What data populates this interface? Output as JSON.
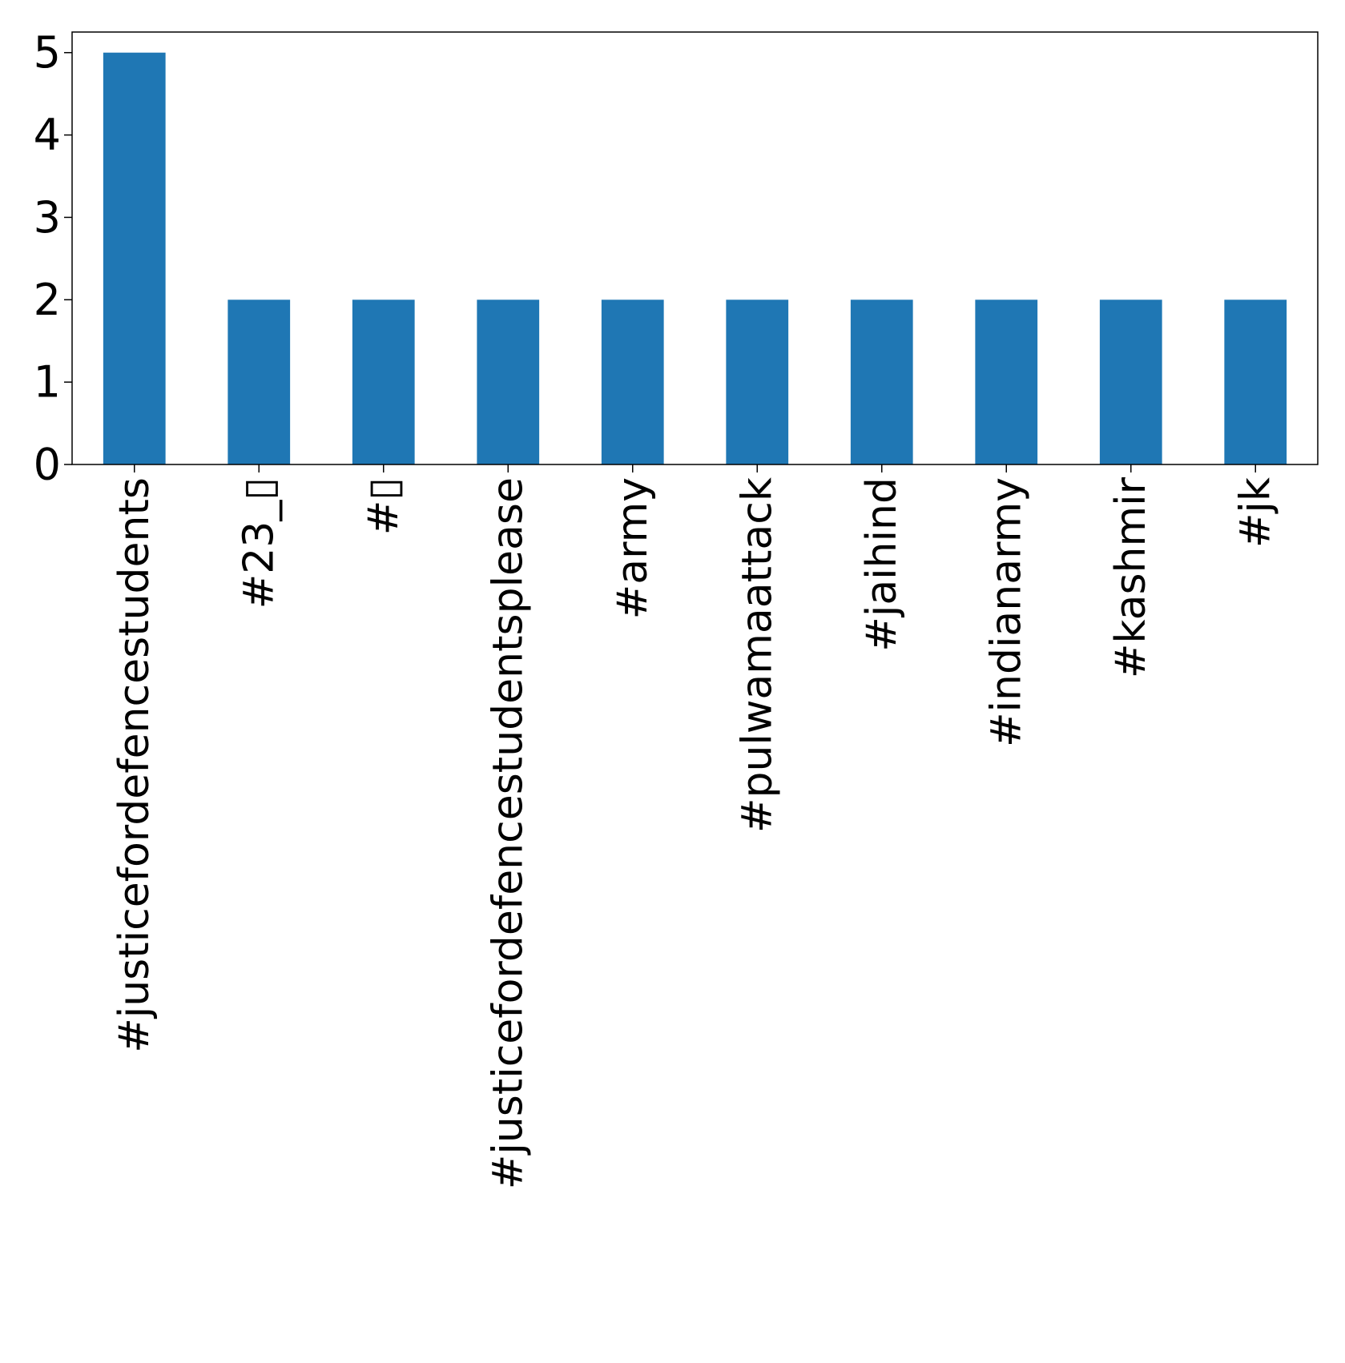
{
  "chart_data": {
    "type": "bar",
    "title": "",
    "xlabel": "",
    "ylabel": "",
    "categories": [
      "#justicefordefencestudents",
      "#23_▯",
      "#▯",
      "#justicefordefencestudentsplease",
      "#army",
      "#pulwamaattack",
      "#jaihind",
      "#indianarmy",
      "#kashmir",
      "#jk"
    ],
    "values": [
      5,
      2,
      2,
      2,
      2,
      2,
      2,
      2,
      2,
      2
    ],
    "ylim": [
      0,
      5.25
    ],
    "yticks": [
      "0",
      "1",
      "2",
      "3",
      "4",
      "5"
    ],
    "grid": false,
    "legend": "none",
    "bar_color": "#1f77b4"
  }
}
